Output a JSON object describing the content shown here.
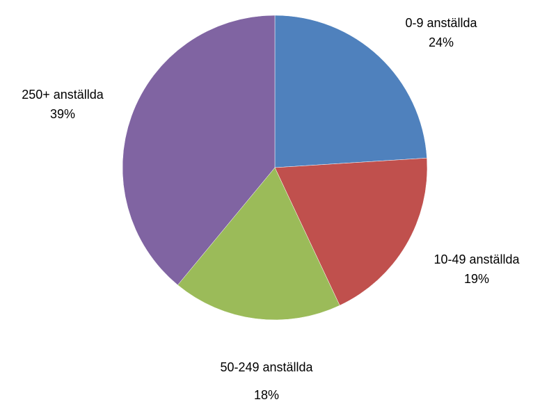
{
  "chart_data": {
    "type": "pie",
    "title": "",
    "slices": [
      {
        "label": "0-9 anställda",
        "percent_label": "24%",
        "value": 24,
        "color": "#4F81BD"
      },
      {
        "label": "10-49 anställda",
        "percent_label": "19%",
        "value": 19,
        "color": "#C0504D"
      },
      {
        "label": "50-249 anställda",
        "percent_label": "18%",
        "value": 18,
        "color": "#9BBB59"
      },
      {
        "label": "250+ anställda",
        "percent_label": "39%",
        "value": 39,
        "color": "#8064A2"
      }
    ],
    "start_angle": "12 o'clock",
    "direction": "clockwise",
    "legend": "none"
  }
}
